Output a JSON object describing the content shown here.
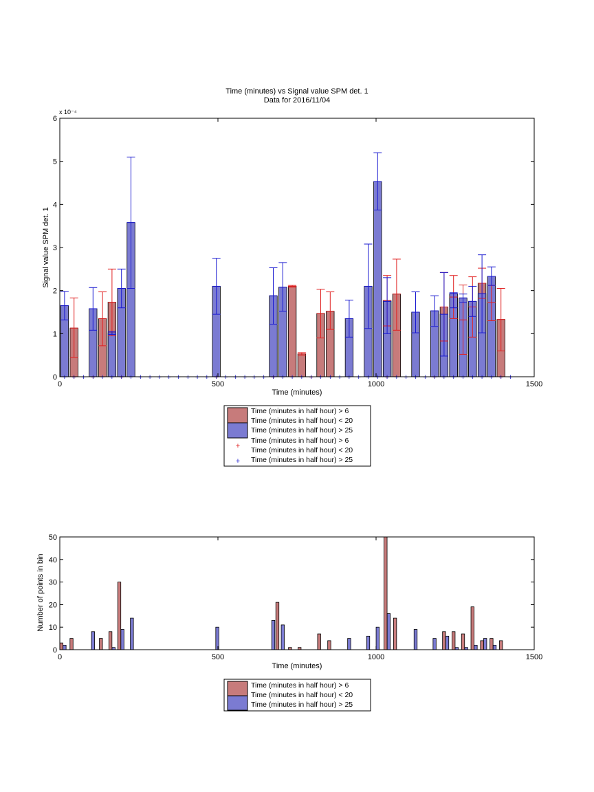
{
  "colors": {
    "red_fill": "#c77b7b",
    "blue_fill": "#7b7bd2",
    "red_line": "#e02020",
    "blue_line": "#1a1ad0"
  },
  "top_chart": {
    "title": "Time (minutes) vs Signal value SPM det. 1",
    "subtitle": "Data for 2016/11/04",
    "xlabel": "Time (minutes)",
    "ylabel": "Signal value SPM det. 1",
    "multiplier": "x 10⁻⁴",
    "legend": [
      "Time (minutes in half hour) > 6",
      "Time (minutes in half hour) < 20",
      "Time (minutes in half hour) > 25",
      "Time (minutes in half hour) > 6",
      "Time (minutes in half hour) < 20",
      "Time (minutes in half hour) > 25"
    ]
  },
  "bottom_chart": {
    "xlabel": "Time (minutes)",
    "ylabel": "Number of points in bin",
    "legend": [
      "Time (minutes in half hour) > 6",
      "Time (minutes in half hour) < 20",
      "Time (minutes in half hour) > 25"
    ]
  },
  "chart_data": [
    {
      "type": "bar",
      "title": "Time (minutes) vs Signal value SPM det. 1",
      "subtitle": "Data for 2016/11/04",
      "xlabel": "Time (minutes)",
      "ylabel": "Signal value SPM det. 1",
      "xlim": [
        0,
        1500
      ],
      "ylim": [
        0,
        0.0006
      ],
      "xticks": [
        0,
        500,
        1000,
        1500
      ],
      "yticks": [
        0,
        1,
        2,
        3,
        4,
        5,
        6
      ],
      "ytick_multiplier": "1e-4",
      "grid": false,
      "legend_position": "below",
      "series": [
        {
          "name": "Time (minutes in half hour) > 6 / Time (minutes in half hour) < 20",
          "color": "red",
          "x": [
            45,
            135,
            165,
            735,
            765,
            825,
            855,
            1035,
            1065,
            1215,
            1245,
            1275,
            1305,
            1335,
            1365,
            1395
          ],
          "y": [
            0.000113,
            0.000135,
            0.000173,
            0.00021,
            5.3e-05,
            0.000147,
            0.000152,
            0.000177,
            0.000192,
            0.000162,
            0.000185,
            0.000132,
            0.000162,
            0.000217,
            0.000172,
            0.000133
          ],
          "err_low": [
            4.5e-05,
            7.2e-05,
            9.5e-05,
            0.000208,
            5e-05,
            9e-05,
            0.00011,
            0.000118,
            0.000108,
            8.3e-05,
            0.000135,
            5.2e-05,
            9.2e-05,
            0.000182,
            0.00013,
            6e-05
          ],
          "err_high": [
            0.000183,
            0.000197,
            0.00025,
            0.000212,
            5.6e-05,
            0.000203,
            0.000197,
            0.000235,
            0.000273,
            0.000242,
            0.000235,
            0.000213,
            0.000232,
            0.000252,
            0.000212,
            0.000205
          ]
        },
        {
          "name": "Time (minutes in half hour) > 25",
          "color": "blue",
          "x": [
            15,
            105,
            165,
            195,
            225,
            495,
            675,
            705,
            915,
            975,
            1005,
            1035,
            1125,
            1185,
            1215,
            1245,
            1275,
            1305,
            1335,
            1365
          ],
          "y": [
            0.000165,
            0.000158,
            0.000102,
            0.000205,
            0.000358,
            0.00021,
            0.000188,
            0.000208,
            0.000135,
            0.00021,
            0.000453,
            0.000175,
            0.00015,
            0.000153,
            0.000145,
            0.000193,
            0.000183,
            0.000175,
            0.000193,
            0.000233
          ],
          "err_low": [
            0.000132,
            0.000108,
            9.8e-05,
            0.00016,
            0.000205,
            0.000145,
            0.000122,
            0.000152,
            9.2e-05,
            0.000112,
            0.000387,
            0.0001,
            0.000102,
            0.000117,
            4.8e-05,
            0.00016,
            0.000173,
            0.00014,
            0.000102,
            0.000212
          ],
          "err_high": [
            0.000198,
            0.000207,
            0.000105,
            0.00025,
            0.00051,
            0.000275,
            0.000253,
            0.000265,
            0.000178,
            0.000308,
            0.00052,
            0.00023,
            0.000197,
            0.000188,
            0.000242,
            0.000195,
            0.000192,
            0.00021,
            0.000283,
            0.000255
          ]
        },
        {
          "name": "Time (minutes in half hour) > 6 / Time (minutes in half hour) < 20",
          "type": "marker",
          "color": "red",
          "x": [
            45,
            105,
            195,
            495,
            675,
            795,
            1035,
            1185,
            1395
          ],
          "y": [
            0,
            0,
            0,
            0,
            0,
            0,
            0,
            0,
            0
          ]
        },
        {
          "name": "Time (minutes in half hour) > 25",
          "type": "marker",
          "color": "blue",
          "x": [
            15,
            45,
            75,
            105,
            135,
            165,
            195,
            225,
            255,
            285,
            315,
            345,
            375,
            405,
            435,
            465,
            495,
            525,
            555,
            585,
            615,
            645,
            675,
            705,
            735,
            765,
            795,
            825,
            855,
            885,
            915,
            945,
            975,
            1005,
            1035,
            1065,
            1095,
            1125,
            1155,
            1185,
            1215,
            1245,
            1275,
            1305,
            1335,
            1365,
            1395,
            1425
          ],
          "y": [
            0,
            0,
            0,
            0,
            0,
            0,
            0,
            0,
            0,
            0,
            0,
            0,
            0,
            0,
            0,
            0,
            0,
            0,
            0,
            0,
            0,
            0,
            0,
            0,
            0,
            0,
            0,
            0,
            0,
            0,
            0,
            0,
            0,
            0,
            0,
            0,
            0,
            0,
            0,
            0,
            0,
            0,
            0,
            0,
            0,
            0,
            0,
            0
          ]
        }
      ]
    },
    {
      "type": "bar",
      "xlabel": "Time (minutes)",
      "ylabel": "Number of points in bin",
      "xlim": [
        0,
        1500
      ],
      "ylim": [
        0,
        50
      ],
      "xticks": [
        0,
        500,
        1000,
        1500
      ],
      "yticks": [
        0,
        10,
        20,
        30,
        40,
        50
      ],
      "grid": false,
      "legend_position": "below",
      "series": [
        {
          "name": "Time (minutes in half hour) > 6 / Time (minutes in half hour) < 20",
          "color": "red",
          "x": [
            5,
            37,
            130,
            160,
            188,
            688,
            728,
            758,
            820,
            852,
            1005,
            1030,
            1060,
            1215,
            1245,
            1275,
            1305,
            1335,
            1365,
            1395
          ],
          "y": [
            3,
            5,
            5,
            8,
            30,
            21,
            1,
            1,
            7,
            4,
            1,
            50,
            14,
            8,
            8,
            7,
            19,
            4,
            5,
            4
          ]
        },
        {
          "name": "Time (minutes in half hour) > 25",
          "color": "blue",
          "x": [
            15,
            105,
            170,
            198,
            228,
            498,
            675,
            705,
            915,
            975,
            1005,
            1040,
            1125,
            1185,
            1225,
            1255,
            1285,
            1315,
            1345,
            1375
          ],
          "y": [
            2,
            8,
            1,
            9,
            14,
            10,
            13,
            11,
            5,
            6,
            10,
            16,
            9,
            5,
            6,
            1,
            1,
            2,
            5,
            2
          ]
        }
      ]
    }
  ]
}
